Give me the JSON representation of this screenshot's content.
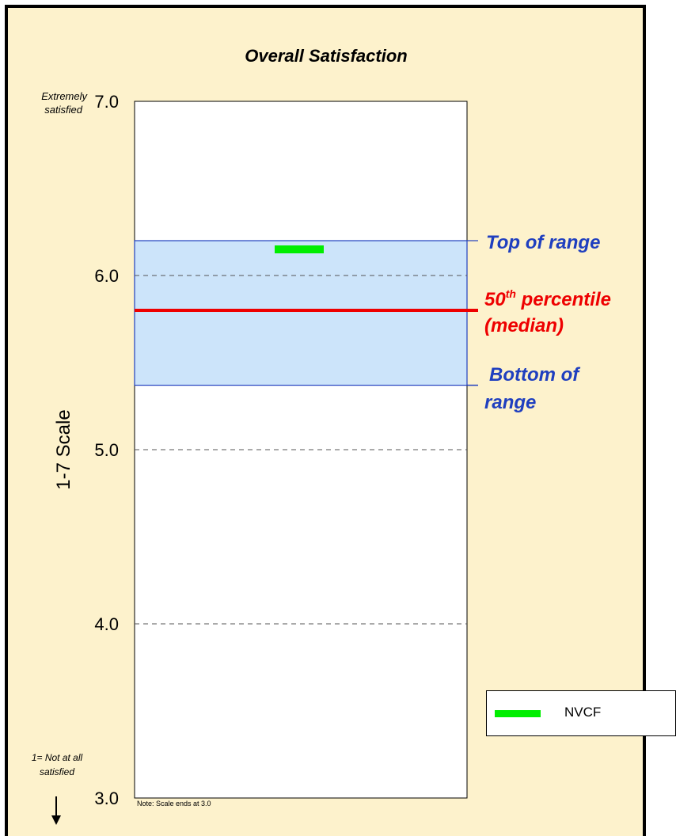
{
  "chart_data": {
    "type": "range-band",
    "title": "Overall Satisfaction",
    "ylabel": "1-7 Scale",
    "ylim": [
      3.0,
      7.0
    ],
    "yticks": [
      3.0,
      4.0,
      5.0,
      6.0,
      7.0
    ],
    "ytick_labels": [
      "3.0",
      "4.0",
      "5.0",
      "6.0",
      "7.0"
    ],
    "gridlines_dashed": [
      4.0,
      5.0,
      6.0
    ],
    "range": {
      "top": 6.2,
      "bottom": 5.37,
      "color": "#CCE4FA"
    },
    "median": {
      "value": 5.8,
      "color": "#EE0000"
    },
    "series": [
      {
        "name": "NVCF",
        "value": 6.15,
        "color": "#00EE00"
      }
    ],
    "annotations": {
      "top_label": "Extremely",
      "top_label_2": "satisfied",
      "bottom_label": "1= Not at all",
      "bottom_label_2": "satisfied",
      "note": "Note: Scale ends at 3.0",
      "top_of_range": "Top of range",
      "median_a": "50",
      "median_sup": "th",
      "median_b": " percentile",
      "median_c": "(median)",
      "bottom_of_range_1": "Bottom of",
      "bottom_of_range_2": "range"
    },
    "legend": {
      "placement": "bottom-right",
      "entries": [
        "NVCF"
      ]
    }
  }
}
